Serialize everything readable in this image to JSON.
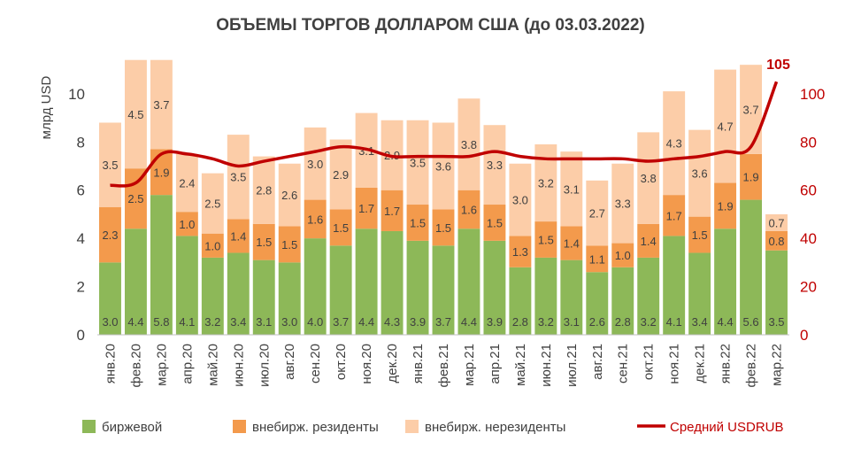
{
  "chart_data": {
    "type": "bar",
    "title": "ОБЪЕМЫ ТОРГОВ ДОЛЛАРОМ США (до 03.03.2022)",
    "ylabel": "млрд USD",
    "ylim": [
      0,
      11.5
    ],
    "yticks": [
      0,
      2,
      4,
      6,
      8,
      10
    ],
    "y2lim": [
      0,
      115
    ],
    "y2ticks": [
      0,
      20,
      40,
      60,
      80,
      100
    ],
    "categories": [
      "янв.20",
      "фев.20",
      "мар.20",
      "апр.20",
      "май.20",
      "июн.20",
      "июл.20",
      "авг.20",
      "сен.20",
      "окт.20",
      "ноя.20",
      "дек.20",
      "янв.21",
      "фев.21",
      "мар.21",
      "апр.21",
      "май.21",
      "июн.21",
      "июл.21",
      "авг.21",
      "сен.21",
      "окт.21",
      "ноя.21",
      "дек.21",
      "янв.22",
      "фев.22",
      "мар.22"
    ],
    "series": [
      {
        "name": "биржевой",
        "color": "#8DB858",
        "values": [
          3.0,
          4.4,
          5.8,
          4.1,
          3.2,
          3.4,
          3.1,
          3.0,
          4.0,
          3.7,
          4.4,
          4.3,
          3.9,
          3.7,
          4.4,
          3.9,
          2.8,
          3.2,
          3.1,
          2.6,
          2.8,
          3.2,
          4.1,
          3.4,
          4.4,
          5.6,
          3.5
        ]
      },
      {
        "name": "внебирж. резиденты",
        "color": "#F39A4C",
        "values": [
          2.3,
          2.5,
          1.9,
          1.0,
          1.0,
          1.4,
          1.5,
          1.5,
          1.6,
          1.5,
          1.7,
          1.7,
          1.5,
          1.5,
          1.6,
          1.5,
          1.3,
          1.5,
          1.4,
          1.1,
          1.0,
          1.4,
          1.7,
          1.5,
          1.9,
          1.9,
          0.8
        ]
      },
      {
        "name": "внебирж. нерезиденты",
        "color": "#FCCDA8",
        "values": [
          3.5,
          4.5,
          3.7,
          2.4,
          2.5,
          3.5,
          2.8,
          2.6,
          3.0,
          2.9,
          3.1,
          2.9,
          3.5,
          3.6,
          3.8,
          3.3,
          3.0,
          3.2,
          3.1,
          2.7,
          3.3,
          3.8,
          4.3,
          3.6,
          4.7,
          3.7,
          0.7
        ]
      }
    ],
    "line": {
      "name": "Средний USDRUB",
      "color": "#C00000",
      "axis": "right",
      "values": [
        62,
        63,
        75,
        75,
        73,
        70,
        72,
        74,
        76,
        78,
        77,
        74,
        74,
        74,
        74,
        76,
        74,
        73,
        73,
        73,
        73,
        72,
        73,
        74,
        76,
        78,
        105
      ]
    },
    "annotation": {
      "label": "105",
      "category": "мар.22"
    },
    "legend_position": "bottom",
    "grid": false
  },
  "legend": {
    "items": [
      {
        "label": "биржевой",
        "color": "#8DB858",
        "kind": "box"
      },
      {
        "label": "внебирж. резиденты",
        "color": "#F39A4C",
        "kind": "box"
      },
      {
        "label": "внебирж. нерезиденты",
        "color": "#FCCDA8",
        "kind": "box"
      },
      {
        "label": "Средний USDRUB",
        "color": "#C00000",
        "kind": "line"
      }
    ]
  }
}
